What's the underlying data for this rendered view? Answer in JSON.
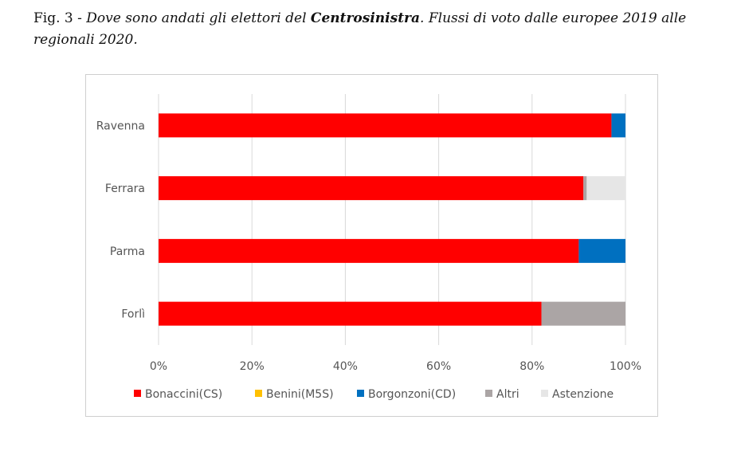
{
  "caption": {
    "prefix": "Fig. 3 - ",
    "text_before": "Dove sono andati gli elettori del ",
    "bold": "Centrosinistra",
    "text_after": ". Flussi di voto dalle europee 2019 alle regionali 2020."
  },
  "chart_data": {
    "type": "bar",
    "orientation": "horizontal",
    "stacked": true,
    "percent": true,
    "categories": [
      "Ravenna",
      "Ferrara",
      "Parma",
      "Forlì"
    ],
    "x_ticks": [
      "0%",
      "20%",
      "40%",
      "60%",
      "80%",
      "100%"
    ],
    "xlim": [
      0,
      100
    ],
    "grid": true,
    "legend_position": "bottom",
    "series": [
      {
        "name": "Bonaccini(CS)",
        "color": "#ff0000",
        "values": [
          97,
          91,
          90,
          82
        ]
      },
      {
        "name": "Benini(M5S)",
        "color": "#ffc000",
        "values": [
          0,
          0,
          0,
          0
        ]
      },
      {
        "name": "Borgonzoni(CD)",
        "color": "#0070c0",
        "values": [
          3,
          0,
          10,
          0
        ]
      },
      {
        "name": "Altri",
        "color": "#aba5a5",
        "values": [
          0,
          0.7,
          0,
          18
        ]
      },
      {
        "name": "Astenzione",
        "color": "#e6e6e6",
        "values": [
          0,
          8.3,
          0,
          0
        ]
      }
    ]
  }
}
